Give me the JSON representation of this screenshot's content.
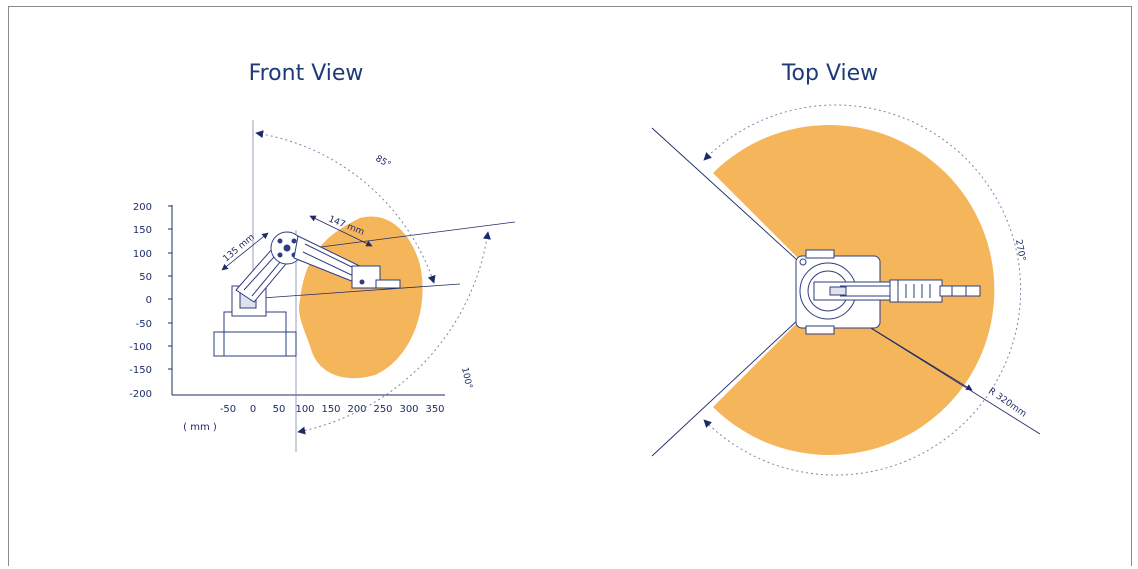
{
  "front_view": {
    "title": "Front View",
    "y_ticks": [
      "200",
      "150",
      "100",
      "50",
      "0",
      "-50",
      "-100",
      "-150",
      "-200"
    ],
    "x_ticks": [
      "-50",
      "0",
      "50",
      "100",
      "150",
      "200",
      "250",
      "300",
      "350"
    ],
    "unit_label": "( mm )",
    "rear_arm_length": "135 mm",
    "fore_arm_length": "147 mm",
    "upper_angle": "85°",
    "lower_angle": "100°"
  },
  "top_view": {
    "title": "Top View",
    "rotation_angle": "270°",
    "radius_label": "R 320mm"
  },
  "colors": {
    "workspace": "#f5b55a",
    "line": "#1e2c66",
    "robot": "#2e3d80"
  }
}
